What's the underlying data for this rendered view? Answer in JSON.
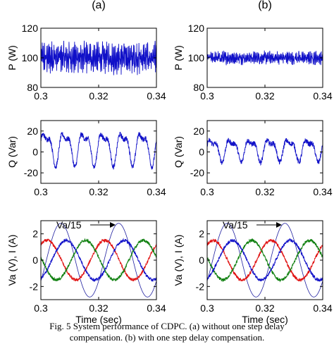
{
  "caption": {
    "line1": "Fig. 5  System performance of CDPC. (a) without one step delay",
    "line2": "compensation. (b) with one step delay compensation."
  },
  "colors": {
    "blue": "#1010c8",
    "red": "#e01010",
    "green": "#108010",
    "thin_blue": "#2020a0"
  },
  "chart_data": [
    {
      "panel": "(a)",
      "type": "line",
      "title": "(a)",
      "ylabel": "P (W)",
      "xlabel": "",
      "xlim": [
        0.3,
        0.34
      ],
      "ylim": [
        80,
        120
      ],
      "xticks": [
        "0.3",
        "0.32",
        "0.34"
      ],
      "yticks": [
        "80",
        "100",
        "120"
      ],
      "series": [
        {
          "color": "blue",
          "mean": 100,
          "ripple_amplitude": 12,
          "kind": "noisy"
        }
      ]
    },
    {
      "panel": "(b)",
      "type": "line",
      "title": "(b)",
      "ylabel": "P (W)",
      "xlabel": "",
      "xlim": [
        0.3,
        0.34
      ],
      "ylim": [
        80,
        120
      ],
      "xticks": [
        "0.3",
        "0.32",
        "0.34"
      ],
      "yticks": [
        "80",
        "100",
        "120"
      ],
      "series": [
        {
          "color": "blue",
          "mean": 100,
          "ripple_amplitude": 5,
          "kind": "noisy"
        }
      ]
    },
    {
      "panel": "(a)",
      "type": "line",
      "ylabel": "Q (Var)",
      "xlabel": "",
      "xlim": [
        0.3,
        0.34
      ],
      "ylim": [
        -30,
        30
      ],
      "xticks": [
        "0.3",
        "0.32",
        "0.34"
      ],
      "yticks": [
        "-20",
        "0",
        "20"
      ],
      "series": [
        {
          "color": "blue",
          "mean": 5,
          "ripple_amplitude": 18,
          "kind": "ripple"
        }
      ]
    },
    {
      "panel": "(b)",
      "type": "line",
      "ylabel": "Q (Var)",
      "xlabel": "",
      "xlim": [
        0.3,
        0.34
      ],
      "ylim": [
        -30,
        30
      ],
      "xticks": [
        "0.3",
        "0.32",
        "0.34"
      ],
      "yticks": [
        "-20",
        "0",
        "20"
      ],
      "series": [
        {
          "color": "blue",
          "mean": 3,
          "ripple_amplitude": 12,
          "kind": "ripple"
        }
      ]
    },
    {
      "panel": "(a)",
      "type": "line",
      "ylabel": "Va (V), I (A)",
      "xlabel": "Time (sec)",
      "xlim": [
        0.3,
        0.34
      ],
      "ylim": [
        -3,
        3
      ],
      "xticks": [
        "0.3",
        "0.32",
        "0.34"
      ],
      "yticks": [
        "-2",
        "0",
        "2"
      ],
      "annotation": "Va/15",
      "series": [
        {
          "color": "thin_blue",
          "kind": "voltage",
          "amplitude": 2.8,
          "frequency_hz": 50
        },
        {
          "color": "red",
          "kind": "current",
          "amplitude": 1.5,
          "frequency_hz": 50
        },
        {
          "color": "green",
          "kind": "current",
          "amplitude": 1.5,
          "frequency_hz": 50
        },
        {
          "color": "blue",
          "kind": "current",
          "amplitude": 1.5,
          "frequency_hz": 50
        }
      ]
    },
    {
      "panel": "(b)",
      "type": "line",
      "ylabel": "Va (V), I (A)",
      "xlabel": "Time (sec)",
      "xlim": [
        0.3,
        0.34
      ],
      "ylim": [
        -3,
        3
      ],
      "xticks": [
        "0.3",
        "0.32",
        "0.34"
      ],
      "yticks": [
        "-2",
        "0",
        "2"
      ],
      "annotation": "Va/15",
      "series": [
        {
          "color": "thin_blue",
          "kind": "voltage",
          "amplitude": 2.8,
          "frequency_hz": 50
        },
        {
          "color": "red",
          "kind": "current",
          "amplitude": 1.5,
          "frequency_hz": 50
        },
        {
          "color": "green",
          "kind": "current",
          "amplitude": 1.5,
          "frequency_hz": 50
        },
        {
          "color": "blue",
          "kind": "current",
          "amplitude": 1.5,
          "frequency_hz": 50
        }
      ]
    }
  ]
}
